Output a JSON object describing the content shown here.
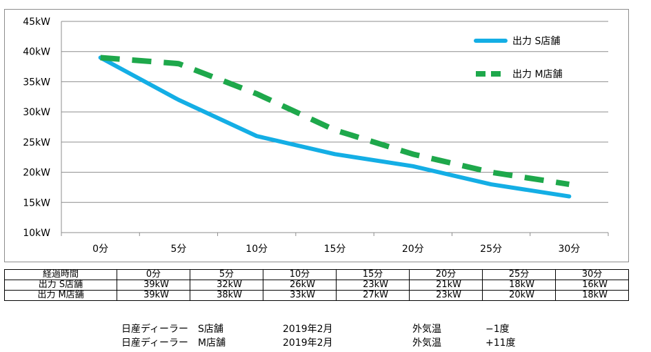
{
  "chart_data": {
    "type": "line",
    "categories": [
      "0分",
      "5分",
      "10分",
      "15分",
      "20分",
      "25分",
      "30分"
    ],
    "x": [
      0,
      5,
      10,
      15,
      20,
      25,
      30
    ],
    "series": [
      {
        "name": "出力 S店舗",
        "values": [
          39,
          32,
          26,
          23,
          21,
          18,
          16
        ],
        "color": "#14aee5",
        "style": "solid"
      },
      {
        "name": "出力 M店舗",
        "values": [
          39,
          38,
          33,
          27,
          23,
          20,
          18
        ],
        "color": "#1ea84b",
        "style": "dashed"
      }
    ],
    "yticks": [
      "10kW",
      "15kW",
      "20kW",
      "25kW",
      "30kW",
      "35kW",
      "40kW",
      "45kW"
    ],
    "ylim": [
      10,
      45
    ],
    "grid": true,
    "legend": "top-right"
  },
  "table": {
    "header": [
      "経過時間",
      "0分",
      "5分",
      "10分",
      "15分",
      "20分",
      "25分",
      "30分"
    ],
    "rows": [
      {
        "label": "出力 S店舗",
        "cells": [
          "39kW",
          "32kW",
          "26kW",
          "23kW",
          "21kW",
          "18kW",
          "16kW"
        ]
      },
      {
        "label": "出力 M店舗",
        "cells": [
          "39kW",
          "38kW",
          "33kW",
          "27kW",
          "23kW",
          "20kW",
          "18kW"
        ]
      }
    ]
  },
  "notes": [
    {
      "dealer": "日産ディーラー　S店舗",
      "date": "2019年2月",
      "temp_label": "外気温",
      "temp": "−1度"
    },
    {
      "dealer": "日産ディーラー　M店舗",
      "date": "2019年2月",
      "temp_label": "外気温",
      "temp": "+11度"
    }
  ]
}
